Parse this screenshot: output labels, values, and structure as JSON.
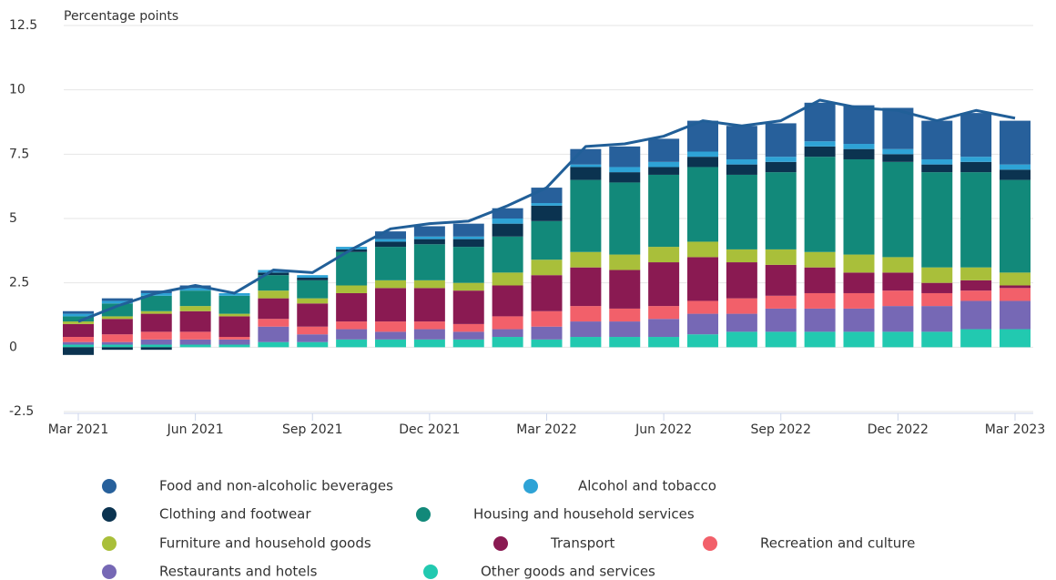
{
  "chart_data": {
    "type": "bar",
    "stacked": true,
    "y_label": "Percentage points",
    "categories": [
      "Mar 2021",
      null,
      null,
      "Jun 2021",
      null,
      null,
      "Sep 2021",
      null,
      null,
      "Dec 2021",
      null,
      null,
      "Mar 2022",
      null,
      null,
      "Jun 2022",
      null,
      null,
      "Sep 2022",
      null,
      null,
      "Dec 2022",
      null,
      null,
      "Mar 2023"
    ],
    "ylim": [
      -2.5,
      12.5
    ],
    "yticks": [
      -2.5,
      0,
      2.5,
      5,
      7.5,
      10,
      12.5
    ],
    "grid": true,
    "series": [
      {
        "name": "Food and non-alcoholic beverages",
        "color": "#27609b",
        "values": [
          0.1,
          0.1,
          0.1,
          0.1,
          0.0,
          0.0,
          0.0,
          0.0,
          0.3,
          0.4,
          0.5,
          0.4,
          0.6,
          0.6,
          0.8,
          0.9,
          1.2,
          1.3,
          1.3,
          1.5,
          1.5,
          1.6,
          1.5,
          1.7,
          1.7
        ]
      },
      {
        "name": "Alcohol and tobacco",
        "color": "#2ea3d6",
        "values": [
          0.1,
          0.1,
          0.1,
          0.1,
          0.1,
          0.1,
          0.1,
          0.1,
          0.1,
          0.1,
          0.1,
          0.2,
          0.1,
          0.1,
          0.2,
          0.2,
          0.2,
          0.2,
          0.2,
          0.2,
          0.2,
          0.2,
          0.2,
          0.2,
          0.2
        ]
      },
      {
        "name": "Clothing and footwear",
        "color": "#0b3350",
        "values": [
          -0.3,
          -0.1,
          -0.1,
          0.0,
          0.0,
          0.1,
          0.1,
          0.1,
          0.2,
          0.2,
          0.3,
          0.5,
          0.6,
          0.5,
          0.4,
          0.3,
          0.4,
          0.4,
          0.4,
          0.4,
          0.4,
          0.3,
          0.3,
          0.4,
          0.4
        ]
      },
      {
        "name": "Housing and household services",
        "color": "#12897a",
        "values": [
          0.2,
          0.5,
          0.6,
          0.6,
          0.7,
          0.6,
          0.7,
          1.3,
          1.3,
          1.4,
          1.4,
          1.4,
          1.5,
          2.8,
          2.8,
          2.8,
          2.9,
          2.9,
          3.0,
          3.7,
          3.7,
          3.7,
          3.7,
          3.7,
          3.6
        ]
      },
      {
        "name": "Furniture and household goods",
        "color": "#a9bf3a",
        "values": [
          0.1,
          0.1,
          0.1,
          0.2,
          0.1,
          0.3,
          0.2,
          0.3,
          0.3,
          0.3,
          0.3,
          0.5,
          0.6,
          0.6,
          0.6,
          0.6,
          0.6,
          0.5,
          0.6,
          0.6,
          0.7,
          0.6,
          0.6,
          0.5,
          0.5
        ]
      },
      {
        "name": "Transport",
        "color": "#8a1a52",
        "values": [
          0.5,
          0.6,
          0.7,
          0.8,
          0.8,
          0.8,
          0.9,
          1.1,
          1.3,
          1.3,
          1.3,
          1.2,
          1.4,
          1.5,
          1.5,
          1.7,
          1.7,
          1.4,
          1.2,
          1.0,
          0.8,
          0.7,
          0.4,
          0.4,
          0.1
        ]
      },
      {
        "name": "Recreation and culture",
        "color": "#f2606a",
        "values": [
          0.2,
          0.3,
          0.3,
          0.3,
          0.1,
          0.3,
          0.3,
          0.3,
          0.4,
          0.3,
          0.3,
          0.5,
          0.6,
          0.6,
          0.5,
          0.5,
          0.5,
          0.6,
          0.5,
          0.6,
          0.6,
          0.6,
          0.5,
          0.4,
          0.5
        ]
      },
      {
        "name": "Restaurants and hotels",
        "color": "#7668b5",
        "values": [
          0.1,
          0.1,
          0.2,
          0.2,
          0.2,
          0.6,
          0.3,
          0.4,
          0.3,
          0.4,
          0.3,
          0.3,
          0.5,
          0.6,
          0.6,
          0.7,
          0.8,
          0.7,
          0.9,
          0.9,
          0.9,
          1.0,
          1.0,
          1.1,
          1.1
        ]
      },
      {
        "name": "Other goods and services",
        "color": "#22c9b0",
        "values": [
          0.1,
          0.1,
          0.1,
          0.1,
          0.1,
          0.2,
          0.2,
          0.3,
          0.3,
          0.3,
          0.3,
          0.4,
          0.3,
          0.4,
          0.4,
          0.4,
          0.5,
          0.6,
          0.6,
          0.6,
          0.6,
          0.6,
          0.6,
          0.7,
          0.7
        ]
      }
    ],
    "total": {
      "color": "#215f98",
      "values": [
        1.0,
        1.6,
        2.1,
        2.4,
        2.1,
        3.0,
        2.9,
        3.8,
        4.6,
        4.8,
        4.9,
        5.5,
        6.2,
        7.8,
        7.9,
        8.2,
        8.8,
        8.6,
        8.8,
        9.6,
        9.3,
        9.2,
        8.8,
        9.2,
        8.9
      ]
    }
  }
}
